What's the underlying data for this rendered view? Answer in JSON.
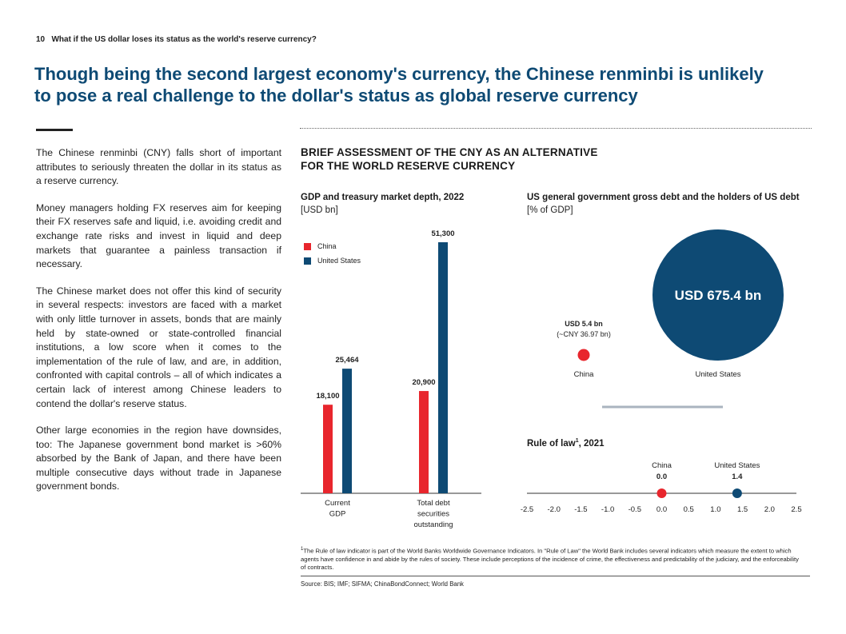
{
  "header": {
    "page_number": "10",
    "running_title": "What if the US dollar loses its status as the world's reserve currency?"
  },
  "headline": {
    "line1": "Though being the second largest economy's currency, the Chinese renminbi is unlikely",
    "line2": "to pose a real challenge to the dollar's status as global reserve currency"
  },
  "body": {
    "paragraphs": [
      "The Chinese renminbi (CNY) falls short of important attributes to seriously threaten the dollar in its status as a reserve currency.",
      "Money managers holding FX reserves aim for keeping their FX reserves safe and liquid, i.e. avoiding credit and exchange rate risks and invest in liquid and deep markets that guarantee a painless transaction if necessary.",
      "The Chinese market does not offer this kind of security in several respects: investors are faced with a market with only little turnover in assets, bonds that are mainly held by state-owned or state-controlled financial institutions, a low score when it comes to the implementation of the rule of law, and are, in addition, confronted with capital controls – all of which indicates a certain lack of interest among Chinese leaders to contend the dollar's reserve status.",
      "Other large economies in the region have downsides, too: The Japanese government bond market is >60% absorbed by the Bank of Japan, and there have been multiple consecutive days without trade in Japanese government bonds."
    ]
  },
  "box": {
    "title_line1": "BRIEF ASSESSMENT OF THE CNY AS AN ALTERNATIVE",
    "title_line2": "FOR THE WORLD RESERVE CURRENCY"
  },
  "colors": {
    "china": "#e8262d",
    "us": "#0e4a74",
    "axis": "#333333",
    "divider": "#aab4bf"
  },
  "chart_data": [
    {
      "type": "bar",
      "title": "GDP and treasury market depth, 2022",
      "unit": "[USD bn]",
      "categories": [
        {
          "line1": "Current",
          "line2": "GDP",
          "line3": ""
        },
        {
          "line1": "Total debt",
          "line2": "securities",
          "line3": "outstanding"
        }
      ],
      "series": [
        {
          "name": "China",
          "values": [
            18100,
            20900
          ],
          "labels": [
            "18,100",
            "20,900"
          ]
        },
        {
          "name": "United States",
          "values": [
            25464,
            51300
          ],
          "labels": [
            "25,464",
            "51,300"
          ]
        }
      ],
      "ylim": [
        0,
        51300
      ],
      "legend_position": "top-left",
      "grid": false
    },
    {
      "type": "bubble",
      "title": "US general government gross debt and the holders of US debt",
      "unit": "[% of GDP]",
      "points": [
        {
          "name": "China",
          "value_usd_bn": 5.4,
          "label": "USD 5.4 bn",
          "sublabel": "(~CNY 36.97 bn)"
        },
        {
          "name": "United States",
          "value_usd_bn": 675.4,
          "label": "USD 675.4 bn",
          "sublabel": ""
        }
      ]
    },
    {
      "type": "scatter",
      "title_prefix": "Rule of law",
      "title_sup": "1",
      "title_suffix": ", 2021",
      "xlim": [
        -2.5,
        2.5
      ],
      "ticks": [
        {
          "v": -2.5,
          "label": "-2.5"
        },
        {
          "v": -2.0,
          "label": "-2.0"
        },
        {
          "v": -1.5,
          "label": "-1.5"
        },
        {
          "v": -1.0,
          "label": "-1.0"
        },
        {
          "v": -0.5,
          "label": "-0.5"
        },
        {
          "v": 0.0,
          "label": "0.0"
        },
        {
          "v": 0.5,
          "label": "0.5"
        },
        {
          "v": 1.0,
          "label": "1.0"
        },
        {
          "v": 1.5,
          "label": "1.5"
        },
        {
          "v": 2.0,
          "label": "2.0"
        },
        {
          "v": 2.5,
          "label": "2.5"
        }
      ],
      "points": [
        {
          "name": "China",
          "value": 0.0,
          "label": "0.0"
        },
        {
          "name": "United States",
          "value": 1.4,
          "label": "1.4"
        }
      ]
    }
  ],
  "footnote": {
    "marker": "1",
    "text": "The Rule of law indicator is part of the World Banks Worldwide Governance Indicators. In \"Rule of Law\" the World Bank includes several indicators which measure the extent to which agents have confidence in and abide by the rules of society. These include perceptions of the incidence of crime, the effectiveness and predictability of the judiciary, and the enforceability of contracts."
  },
  "source": "Source: BIS; IMF; SIFMA; ChinaBondConnect; World Bank"
}
